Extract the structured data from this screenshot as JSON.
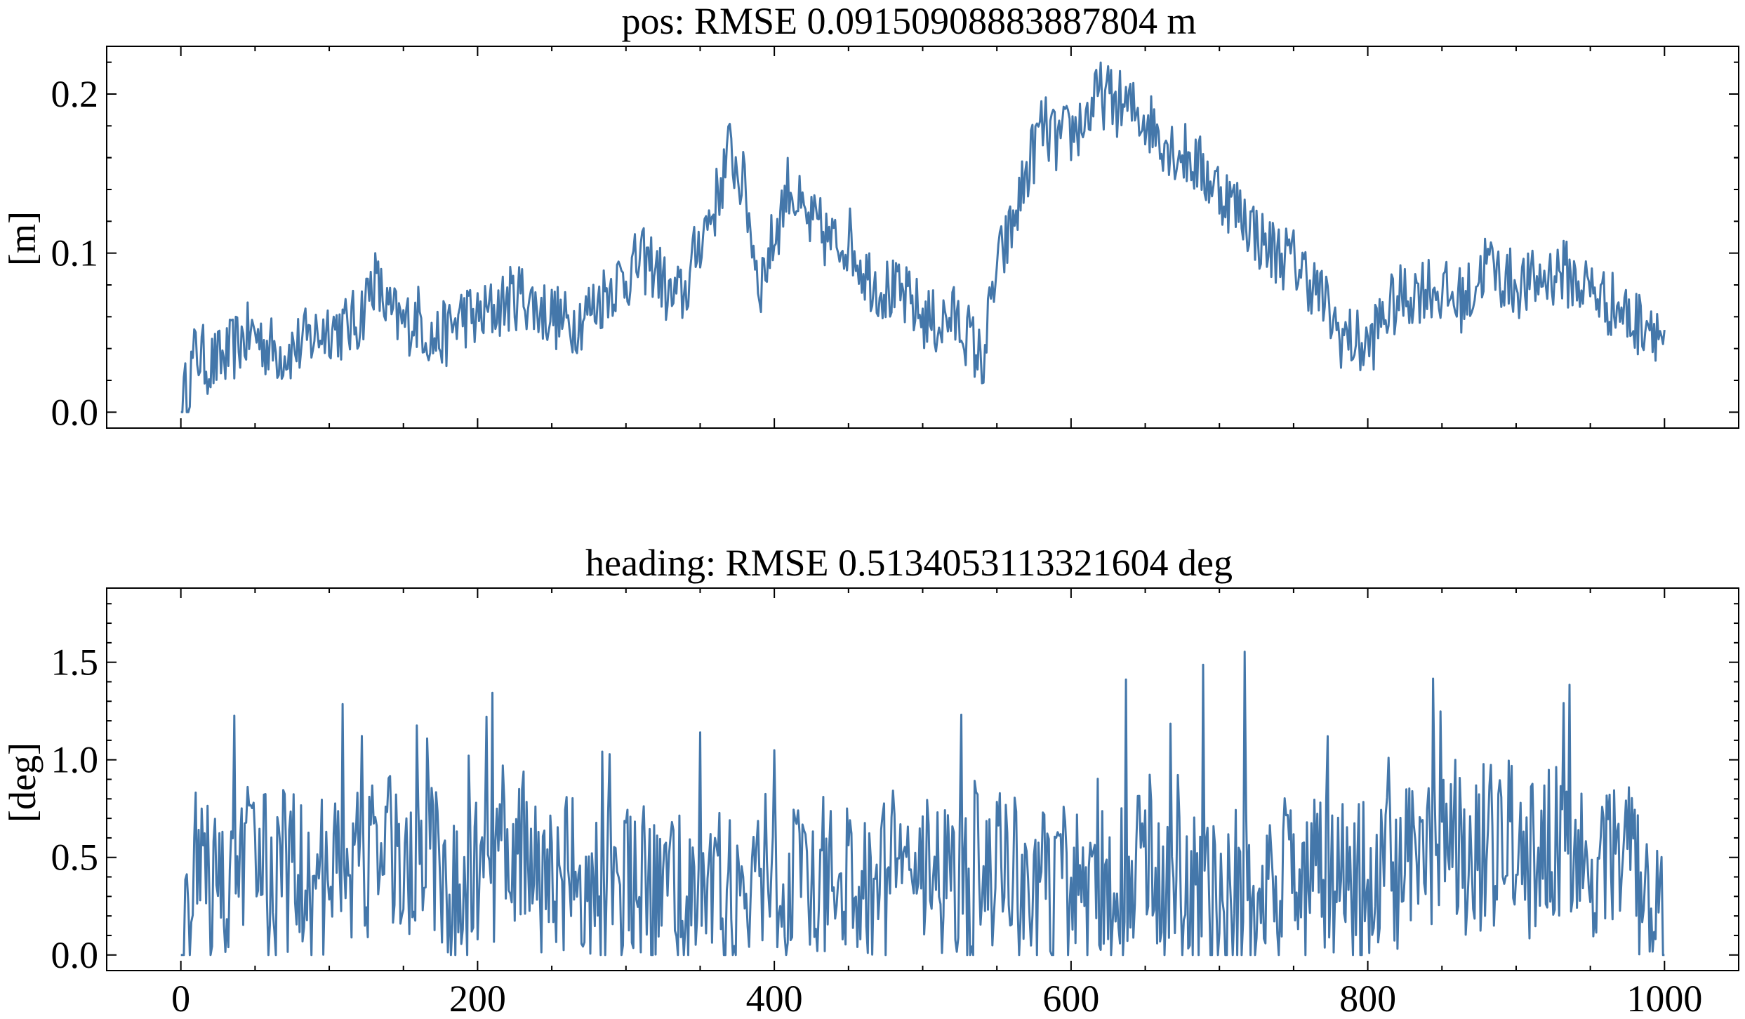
{
  "chart_data": [
    {
      "type": "line",
      "title": "pos: RMSE 0.09150908883887804 m",
      "xlabel": "",
      "ylabel": "[m]",
      "xlim": [
        -50,
        1050
      ],
      "ylim": [
        -0.01,
        0.23
      ],
      "x_ticks": [
        0,
        200,
        400,
        600,
        800,
        1000
      ],
      "y_ticks": [
        0.0,
        0.1,
        0.2
      ],
      "y_tick_labels": [
        "0.0",
        "0.1",
        "0.2"
      ],
      "x_tick_labels_visible": false,
      "grid": false,
      "color": "#4477aa",
      "series": [
        {
          "x_step": 10,
          "x_start": 0,
          "values": [
            0.0,
            0.038,
            0.03,
            0.034,
            0.045,
            0.05,
            0.04,
            0.038,
            0.042,
            0.048,
            0.055,
            0.052,
            0.058,
            0.085,
            0.062,
            0.055,
            0.06,
            0.045,
            0.05,
            0.062,
            0.058,
            0.064,
            0.07,
            0.075,
            0.065,
            0.062,
            0.055,
            0.06,
            0.068,
            0.08,
            0.085,
            0.095,
            0.092,
            0.07,
            0.075,
            0.11,
            0.13,
            0.165,
            0.14,
            0.08,
            0.11,
            0.145,
            0.12,
            0.115,
            0.105,
            0.11,
            0.09,
            0.08,
            0.075,
            0.07,
            0.06,
            0.055,
            0.06,
            0.05,
            0.03,
            0.09,
            0.115,
            0.15,
            0.18,
            0.17,
            0.175,
            0.185,
            0.2,
            0.195,
            0.19,
            0.185,
            0.175,
            0.165,
            0.16,
            0.15,
            0.14,
            0.13,
            0.12,
            0.105,
            0.1,
            0.095,
            0.085,
            0.07,
            0.05,
            0.045,
            0.04,
            0.06,
            0.07,
            0.075,
            0.08,
            0.075,
            0.07,
            0.075,
            0.095,
            0.085,
            0.08,
            0.08,
            0.085,
            0.09,
            0.082,
            0.078,
            0.07,
            0.065,
            0.055,
            0.06,
            0.045
          ]
        }
      ]
    },
    {
      "type": "line",
      "title": "heading: RMSE 0.5134053113321604 deg",
      "xlabel": "",
      "ylabel": "[deg]",
      "xlim": [
        -50,
        1050
      ],
      "ylim": [
        -0.08,
        1.88
      ],
      "x_ticks": [
        0,
        200,
        400,
        600,
        800,
        1000
      ],
      "x_tick_labels": [
        "0",
        "200",
        "400",
        "600",
        "800",
        "1000"
      ],
      "y_ticks": [
        0.0,
        0.5,
        1.0,
        1.5
      ],
      "y_tick_labels": [
        "0.0",
        "0.5",
        "1.0",
        "1.5"
      ],
      "grid": false,
      "color": "#4477aa",
      "series": [
        {
          "x_step": 10,
          "x_start": 0,
          "values": [
            0.0,
            0.45,
            0.35,
            0.3,
            0.4,
            0.55,
            0.3,
            0.45,
            0.4,
            0.35,
            0.42,
            0.5,
            0.45,
            0.55,
            0.6,
            0.5,
            0.45,
            0.52,
            0.4,
            0.35,
            0.45,
            0.4,
            0.38,
            0.55,
            0.42,
            0.36,
            0.4,
            0.35,
            0.3,
            0.38,
            0.32,
            0.35,
            0.3,
            0.33,
            0.28,
            0.35,
            0.3,
            0.4,
            0.45,
            0.42,
            0.38,
            0.4,
            0.35,
            0.3,
            0.32,
            0.35,
            0.4,
            0.38,
            0.42,
            0.4,
            0.38,
            0.35,
            0.32,
            0.3,
            0.35,
            0.42,
            0.4,
            0.38,
            0.36,
            0.34,
            0.32,
            0.3,
            0.33,
            0.35,
            0.4,
            0.45,
            0.42,
            0.38,
            0.35,
            0.32,
            0.3,
            0.32,
            0.35,
            0.38,
            0.36,
            0.4,
            0.42,
            0.45,
            0.38,
            0.35,
            0.38,
            0.42,
            0.4,
            0.45,
            0.5,
            0.55,
            0.5,
            0.48,
            0.55,
            0.6,
            0.55,
            0.5,
            0.58,
            0.52,
            0.48,
            0.5,
            0.55,
            0.45,
            0.42,
            0.4,
            0.35
          ]
        }
      ]
    }
  ]
}
